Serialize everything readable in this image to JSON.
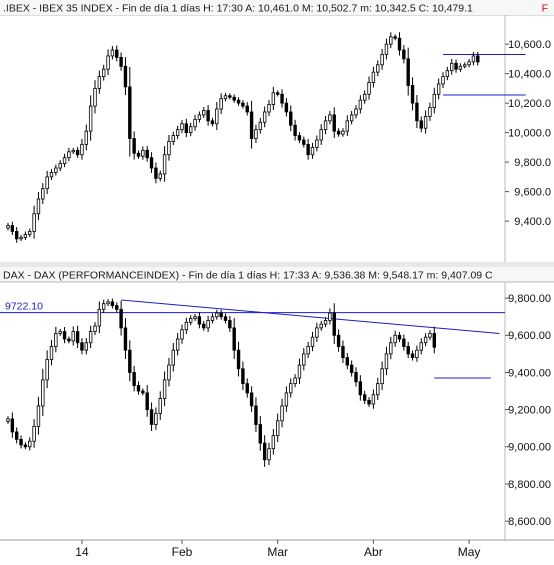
{
  "chart_data": [
    {
      "type": "candlestick",
      "header": ".IBEX - IBEX 35 INDEX - Fin de día 1 días  H: 17:30  A: 10,461.0  M: 10,502.7  m: 10,342.5  C: 10,479.1",
      "header_marker": "F",
      "ylim": [
        9150,
        10750
      ],
      "y_ticks": [
        {
          "value": 10600,
          "label": "10,600.0"
        },
        {
          "value": 10400,
          "label": "10,400.0"
        },
        {
          "value": 10200,
          "label": "10,200.0"
        },
        {
          "value": 10000,
          "label": "10,000.0"
        },
        {
          "value": 9800,
          "label": "9,800.0"
        },
        {
          "value": 9600,
          "label": "9,600.0"
        },
        {
          "value": 9400,
          "label": "9,400.0"
        }
      ],
      "trendlines": [
        {
          "x1": 100,
          "y1": 10530,
          "x2": 119,
          "y2": 10530
        },
        {
          "x1": 100,
          "y1": 10255,
          "x2": 119,
          "y2": 10255
        }
      ],
      "close": [
        9370,
        9330,
        9280,
        9290,
        9310,
        9330,
        9450,
        9550,
        9620,
        9700,
        9730,
        9760,
        9790,
        9830,
        9870,
        9880,
        9850,
        9920,
        10010,
        10180,
        10300,
        10380,
        10430,
        10520,
        10560,
        10510,
        10450,
        10310,
        9960,
        9860,
        9840,
        9880,
        9830,
        9760,
        9690,
        9720,
        9850,
        9940,
        9980,
        10020,
        10060,
        10000,
        10040,
        10090,
        10120,
        10150,
        10080,
        10060,
        10160,
        10230,
        10250,
        10240,
        10220,
        10200,
        10180,
        10140,
        9960,
        10020,
        10070,
        10140,
        10190,
        10270,
        10260,
        10200,
        10140,
        10050,
        9980,
        9950,
        9920,
        9850,
        9900,
        9950,
        10020,
        10080,
        10120,
        10010,
        9990,
        10010,
        10080,
        10120,
        10160,
        10220,
        10260,
        10340,
        10410,
        10460,
        10530,
        10600,
        10650,
        10640,
        10560,
        10500,
        10320,
        10200,
        10080,
        10030,
        10110,
        10170,
        10260,
        10330,
        10380,
        10420,
        10470,
        10430,
        10450,
        10460,
        10480,
        10520,
        10479
      ]
    },
    {
      "type": "candlestick",
      "header": "DAX - DAX (PERFORMANCEINDEX) - Fin de día 1 días  H: 17:33  A: 9,536.38  M: 9,548.17  m: 9,407.09  C",
      "ylim": [
        8520,
        9860
      ],
      "y_ticks": [
        {
          "value": 9800,
          "label": "9,800.00"
        },
        {
          "value": 9600,
          "label": "9,600.00"
        },
        {
          "value": 9400,
          "label": "9,400.00"
        },
        {
          "value": 9200,
          "label": "9,200.00"
        },
        {
          "value": 9000,
          "label": "9,000.00"
        },
        {
          "value": 8800,
          "label": "8,800.00"
        },
        {
          "value": 8600,
          "label": "8,600.00"
        }
      ],
      "hline": {
        "value": 9722.1,
        "label": "9722.10"
      },
      "trendlines": [
        {
          "x1": 26,
          "y1": 9790,
          "x2": 113,
          "y2": 9610
        },
        {
          "x1": 98,
          "y1": 9370,
          "x2": 111,
          "y2": 9370
        }
      ],
      "close": [
        9150,
        9080,
        9040,
        9010,
        9000,
        9030,
        9110,
        9220,
        9360,
        9470,
        9540,
        9610,
        9620,
        9580,
        9570,
        9620,
        9560,
        9520,
        9560,
        9620,
        9650,
        9740,
        9770,
        9780,
        9760,
        9740,
        9640,
        9520,
        9400,
        9330,
        9300,
        9290,
        9200,
        9120,
        9180,
        9260,
        9360,
        9440,
        9520,
        9580,
        9630,
        9670,
        9690,
        9700,
        9660,
        9640,
        9680,
        9700,
        9720,
        9700,
        9680,
        9640,
        9520,
        9420,
        9340,
        9290,
        9220,
        9120,
        9020,
        8930,
        8990,
        9060,
        9140,
        9220,
        9290,
        9340,
        9370,
        9440,
        9500,
        9540,
        9590,
        9640,
        9660,
        9680,
        9720,
        9600,
        9540,
        9480,
        9440,
        9400,
        9350,
        9280,
        9250,
        9230,
        9280,
        9340,
        9420,
        9500,
        9560,
        9600,
        9580,
        9540,
        9500,
        9480,
        9520,
        9560,
        9590,
        9610,
        9536
      ]
    }
  ],
  "x_axis": {
    "labels": [
      {
        "index": 17,
        "text": "14"
      },
      {
        "index": 40,
        "text": "Feb"
      },
      {
        "index": 62,
        "text": "Mar"
      },
      {
        "index": 84,
        "text": "Abr"
      },
      {
        "index": 106,
        "text": "May"
      }
    ]
  }
}
